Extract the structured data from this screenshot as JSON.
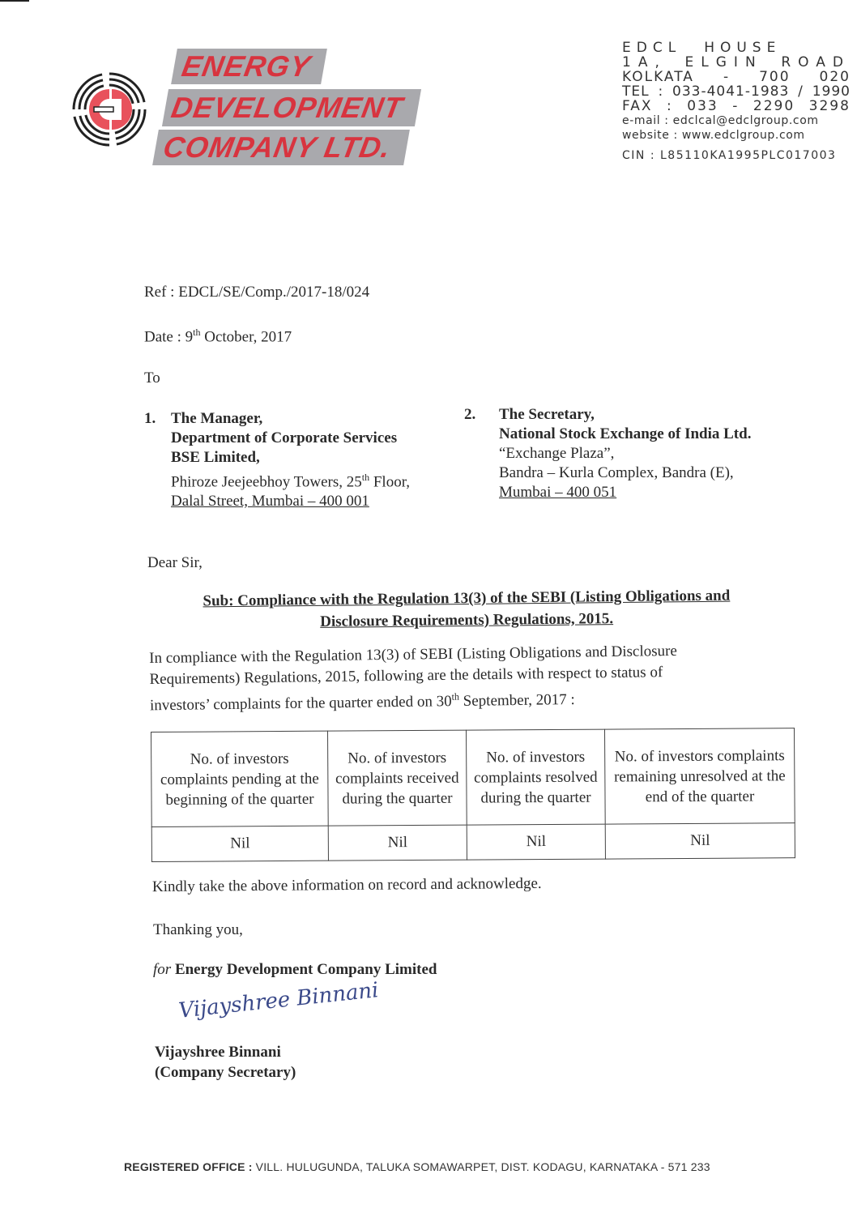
{
  "letterhead": {
    "logo_text": [
      "ENERGY",
      "DEVELOPMENT",
      "COMPANY LTD."
    ],
    "brand_color": "#d8343f",
    "band_color": "#a9a9ad",
    "address_lines": [
      [
        "EDCL",
        "HOUSE"
      ],
      [
        "1A,",
        "ELGIN",
        "ROAD"
      ],
      [
        "KOLKATA",
        "-",
        "700",
        "020"
      ],
      [
        "TEL",
        ":",
        "033-4041-1983",
        "/",
        "1990"
      ],
      [
        "FAX",
        ":",
        "033",
        "-",
        "2290",
        "3298"
      ]
    ],
    "email": "e-mail : edclcal@edclgroup.com",
    "website": "website : www.edclgroup.com",
    "cin": "CIN : L85110KA1995PLC017003"
  },
  "letter": {
    "ref": "Ref : EDCL/SE/Comp./2017-18/024",
    "date_prefix": "Date : 9",
    "date_sup": "th",
    "date_suffix": " October, 2017",
    "to": "To",
    "recipient1": {
      "num": "1.",
      "lines_bold": [
        "The Manager,",
        "Department of Corporate Services",
        "BSE Limited,"
      ],
      "line4_pre": "Phiroze Jeejeebhoy Towers, 25",
      "line4_sup": "th",
      "line4_post": " Floor,",
      "line5": "Dalal Street, Mumbai – 400 001"
    },
    "recipient2": {
      "num": "2.",
      "lines_bold": [
        "The Secretary,",
        "National Stock Exchange of India Ltd."
      ],
      "line3": "“Exchange Plaza”,",
      "line4": "Bandra – Kurla Complex, Bandra (E),",
      "line5": "Mumbai – 400 051"
    },
    "salutation": "Dear Sir,",
    "subject_line1": "Sub: Compliance with the Regulation 13(3) of the SEBI (Listing Obligations and",
    "subject_line2": "Disclosure Requirements) Regulations, 2015.",
    "body_line1": "In compliance with the Regulation 13(3) of SEBI (Listing Obligations and Disclosure",
    "body_line2": "Requirements) Regulations, 2015, following are the details with respect to status of",
    "body_line3_pre": "investors’ complaints for the quarter ended on 30",
    "body_line3_sup": "th",
    "body_line3_post": " September, 2017 :",
    "table": {
      "headers": [
        "No. of investors complaints pending at the beginning of the quarter",
        "No. of investors complaints received during the quarter",
        "No. of investors complaints resolved during the quarter",
        "No. of investors complaints remaining unresolved at the end of the quarter"
      ],
      "row": [
        "Nil",
        "Nil",
        "Nil",
        "Nil"
      ]
    },
    "closing1": "Kindly take the above information on record and acknowledge.",
    "closing2": "Thanking you,",
    "for_prefix": "for",
    "for_company": " Energy Development Company Limited",
    "signature": "Vijayshree Binnani",
    "signatory_name": "Vijayshree Binnani",
    "signatory_title": "(Company Secretary)"
  },
  "footer": {
    "label": "REGISTERED OFFICE :",
    "address": " VILL. HULUGUNDA, TALUKA SOMAWARPET, DIST. KODAGU, KARNATAKA - 571 233"
  }
}
